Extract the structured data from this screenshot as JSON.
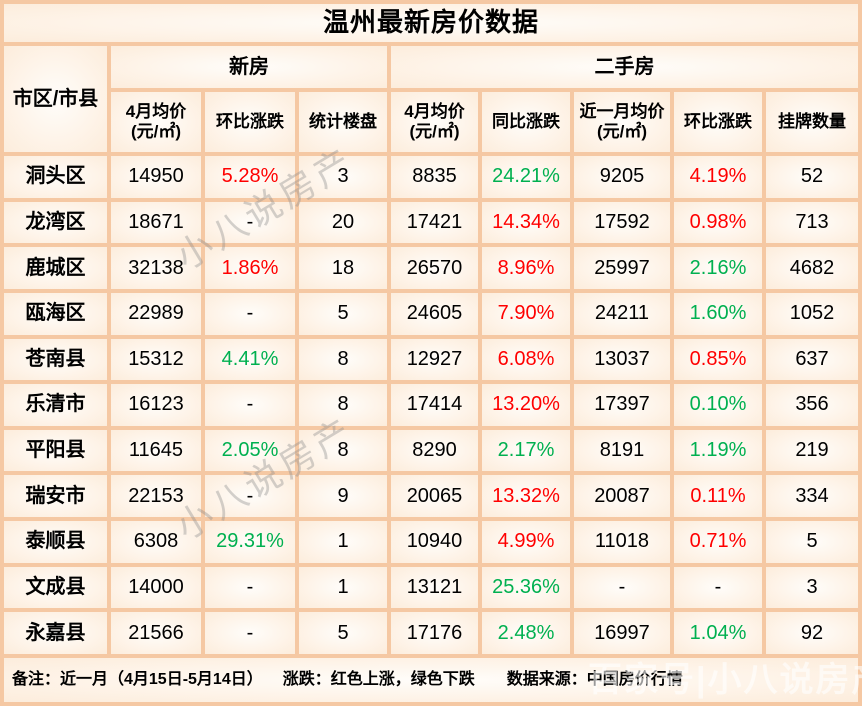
{
  "chart_data": {
    "type": "table",
    "title": "温州最新房价数据",
    "region_column": "市区/市县",
    "groups": [
      {
        "label": "新房",
        "columns": [
          "4月均价(元/㎡)",
          "环比涨跌",
          "统计楼盘"
        ]
      },
      {
        "label": "二手房",
        "columns": [
          "4月均价(元/㎡)",
          "同比涨跌",
          "近一月均价(元/㎡)",
          "环比涨跌",
          "挂牌数量"
        ]
      }
    ],
    "subheaders": [
      "4月均价 (元/㎡)",
      "环比涨跌",
      "统计楼盘",
      "4月均价 (元/㎡)",
      "同比涨跌",
      "近一月均价(元/㎡)",
      "环比涨跌",
      "挂牌数量"
    ],
    "rows": [
      {
        "region": "洞头区",
        "cells": [
          {
            "v": "14950"
          },
          {
            "v": "5.28%",
            "dir": "up"
          },
          {
            "v": "3"
          },
          {
            "v": "8835"
          },
          {
            "v": "24.21%",
            "dir": "down"
          },
          {
            "v": "9205"
          },
          {
            "v": "4.19%",
            "dir": "up"
          },
          {
            "v": "52"
          }
        ]
      },
      {
        "region": "龙湾区",
        "cells": [
          {
            "v": "18671"
          },
          {
            "v": "-"
          },
          {
            "v": "20"
          },
          {
            "v": "17421"
          },
          {
            "v": "14.34%",
            "dir": "up"
          },
          {
            "v": "17592"
          },
          {
            "v": "0.98%",
            "dir": "up"
          },
          {
            "v": "713"
          }
        ]
      },
      {
        "region": "鹿城区",
        "cells": [
          {
            "v": "32138"
          },
          {
            "v": "1.86%",
            "dir": "up"
          },
          {
            "v": "18"
          },
          {
            "v": "26570"
          },
          {
            "v": "8.96%",
            "dir": "up"
          },
          {
            "v": "25997"
          },
          {
            "v": "2.16%",
            "dir": "down"
          },
          {
            "v": "4682"
          }
        ]
      },
      {
        "region": "瓯海区",
        "cells": [
          {
            "v": "22989"
          },
          {
            "v": "-"
          },
          {
            "v": "5"
          },
          {
            "v": "24605"
          },
          {
            "v": "7.90%",
            "dir": "up"
          },
          {
            "v": "24211"
          },
          {
            "v": "1.60%",
            "dir": "down"
          },
          {
            "v": "1052"
          }
        ]
      },
      {
        "region": "苍南县",
        "cells": [
          {
            "v": "15312"
          },
          {
            "v": "4.41%",
            "dir": "down"
          },
          {
            "v": "8"
          },
          {
            "v": "12927"
          },
          {
            "v": "6.08%",
            "dir": "up"
          },
          {
            "v": "13037"
          },
          {
            "v": "0.85%",
            "dir": "up"
          },
          {
            "v": "637"
          }
        ]
      },
      {
        "region": "乐清市",
        "cells": [
          {
            "v": "16123"
          },
          {
            "v": "-"
          },
          {
            "v": "8"
          },
          {
            "v": "17414"
          },
          {
            "v": "13.20%",
            "dir": "up"
          },
          {
            "v": "17397"
          },
          {
            "v": "0.10%",
            "dir": "down"
          },
          {
            "v": "356"
          }
        ]
      },
      {
        "region": "平阳县",
        "cells": [
          {
            "v": "11645"
          },
          {
            "v": "2.05%",
            "dir": "down"
          },
          {
            "v": "8"
          },
          {
            "v": "8290"
          },
          {
            "v": "2.17%",
            "dir": "down"
          },
          {
            "v": "8191"
          },
          {
            "v": "1.19%",
            "dir": "down"
          },
          {
            "v": "219"
          }
        ]
      },
      {
        "region": "瑞安市",
        "cells": [
          {
            "v": "22153"
          },
          {
            "v": "-"
          },
          {
            "v": "9"
          },
          {
            "v": "20065"
          },
          {
            "v": "13.32%",
            "dir": "up"
          },
          {
            "v": "20087"
          },
          {
            "v": "0.11%",
            "dir": "up"
          },
          {
            "v": "334"
          }
        ]
      },
      {
        "region": "泰顺县",
        "cells": [
          {
            "v": "6308"
          },
          {
            "v": "29.31%",
            "dir": "down"
          },
          {
            "v": "1"
          },
          {
            "v": "10940"
          },
          {
            "v": "4.99%",
            "dir": "up"
          },
          {
            "v": "11018"
          },
          {
            "v": "0.71%",
            "dir": "up"
          },
          {
            "v": "5"
          }
        ]
      },
      {
        "region": "文成县",
        "cells": [
          {
            "v": "14000"
          },
          {
            "v": "-"
          },
          {
            "v": "1"
          },
          {
            "v": "13121"
          },
          {
            "v": "25.36%",
            "dir": "down"
          },
          {
            "v": "-"
          },
          {
            "v": "-"
          },
          {
            "v": "3"
          }
        ]
      },
      {
        "region": "永嘉县",
        "cells": [
          {
            "v": "21566"
          },
          {
            "v": "-"
          },
          {
            "v": "5"
          },
          {
            "v": "17176"
          },
          {
            "v": "2.48%",
            "dir": "down"
          },
          {
            "v": "16997"
          },
          {
            "v": "1.04%",
            "dir": "down"
          },
          {
            "v": "92"
          }
        ]
      }
    ]
  },
  "footer": {
    "note": "备注：近一月（4月15日-5月14日）",
    "legend": "涨跌：红色上涨，绿色下跌",
    "source": "数据来源：中国房价行情"
  },
  "watermarks": {
    "diagonal": "小八说房产",
    "footer_brand": "百家号|小八说房产"
  },
  "colors": {
    "up": "#ff0000",
    "down": "#00b050",
    "border": "#f5c8a3",
    "text": "#000000"
  }
}
